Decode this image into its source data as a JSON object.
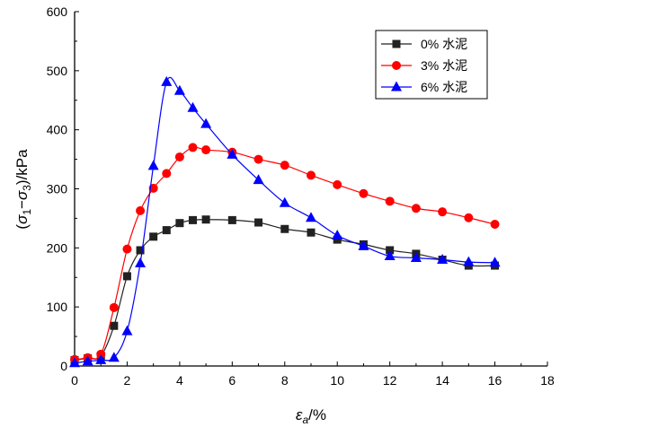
{
  "chart_data": {
    "type": "line",
    "title": "",
    "xlabel": "εa/%",
    "xlabel_main": "ε",
    "xlabel_sub": "a",
    "xlabel_rest": "/%",
    "ylabel": "(σ1−σ3)/kPa",
    "ylabel_parts": {
      "open": "(",
      "s1": "σ",
      "sub1": "1",
      "minus": "−",
      "s3": "σ",
      "sub3": "3",
      "close": ")/kPa"
    },
    "xlim": [
      0,
      18
    ],
    "ylim": [
      0,
      600
    ],
    "xticks": [
      0,
      2,
      4,
      6,
      8,
      10,
      12,
      14,
      16,
      18
    ],
    "yticks": [
      0,
      100,
      200,
      300,
      400,
      500,
      600
    ],
    "legend_position": "top-right",
    "grid": false,
    "series": [
      {
        "name": "0% 水泥",
        "color": "#222222",
        "marker": "square",
        "x": [
          0,
          0.5,
          1,
          1.5,
          2,
          2.5,
          3,
          3.5,
          4,
          4.5,
          5,
          6,
          7,
          8,
          9,
          10,
          11,
          12,
          13,
          14,
          15,
          16
        ],
        "y": [
          10,
          13,
          17,
          68,
          152,
          196,
          219,
          230,
          242,
          247,
          248,
          247,
          243,
          232,
          226,
          214,
          206,
          196,
          190,
          180,
          170,
          170
        ]
      },
      {
        "name": "3% 水泥",
        "color": "#ff0000",
        "marker": "circle",
        "x": [
          0,
          0.5,
          1,
          1.5,
          2,
          2.5,
          3,
          3.5,
          4,
          4.5,
          5,
          6,
          7,
          8,
          9,
          10,
          11,
          12,
          13,
          14,
          15,
          16
        ],
        "y": [
          11,
          14,
          20,
          99,
          198,
          263,
          301,
          326,
          354,
          370,
          366,
          362,
          350,
          340,
          323,
          307,
          292,
          279,
          267,
          261,
          251,
          240
        ]
      },
      {
        "name": "6% 水泥",
        "color": "#0000ff",
        "marker": "triangle",
        "x": [
          0,
          0.5,
          1,
          1.5,
          2,
          2.5,
          3,
          3.5,
          4,
          4.5,
          5,
          6,
          7,
          8,
          9,
          10,
          11,
          12,
          13,
          14,
          15,
          16
        ],
        "y": [
          5,
          8,
          10,
          14,
          59,
          174,
          339,
          481,
          466,
          437,
          410,
          358,
          315,
          276,
          251,
          221,
          203,
          186,
          183,
          180,
          176,
          175
        ]
      }
    ]
  }
}
